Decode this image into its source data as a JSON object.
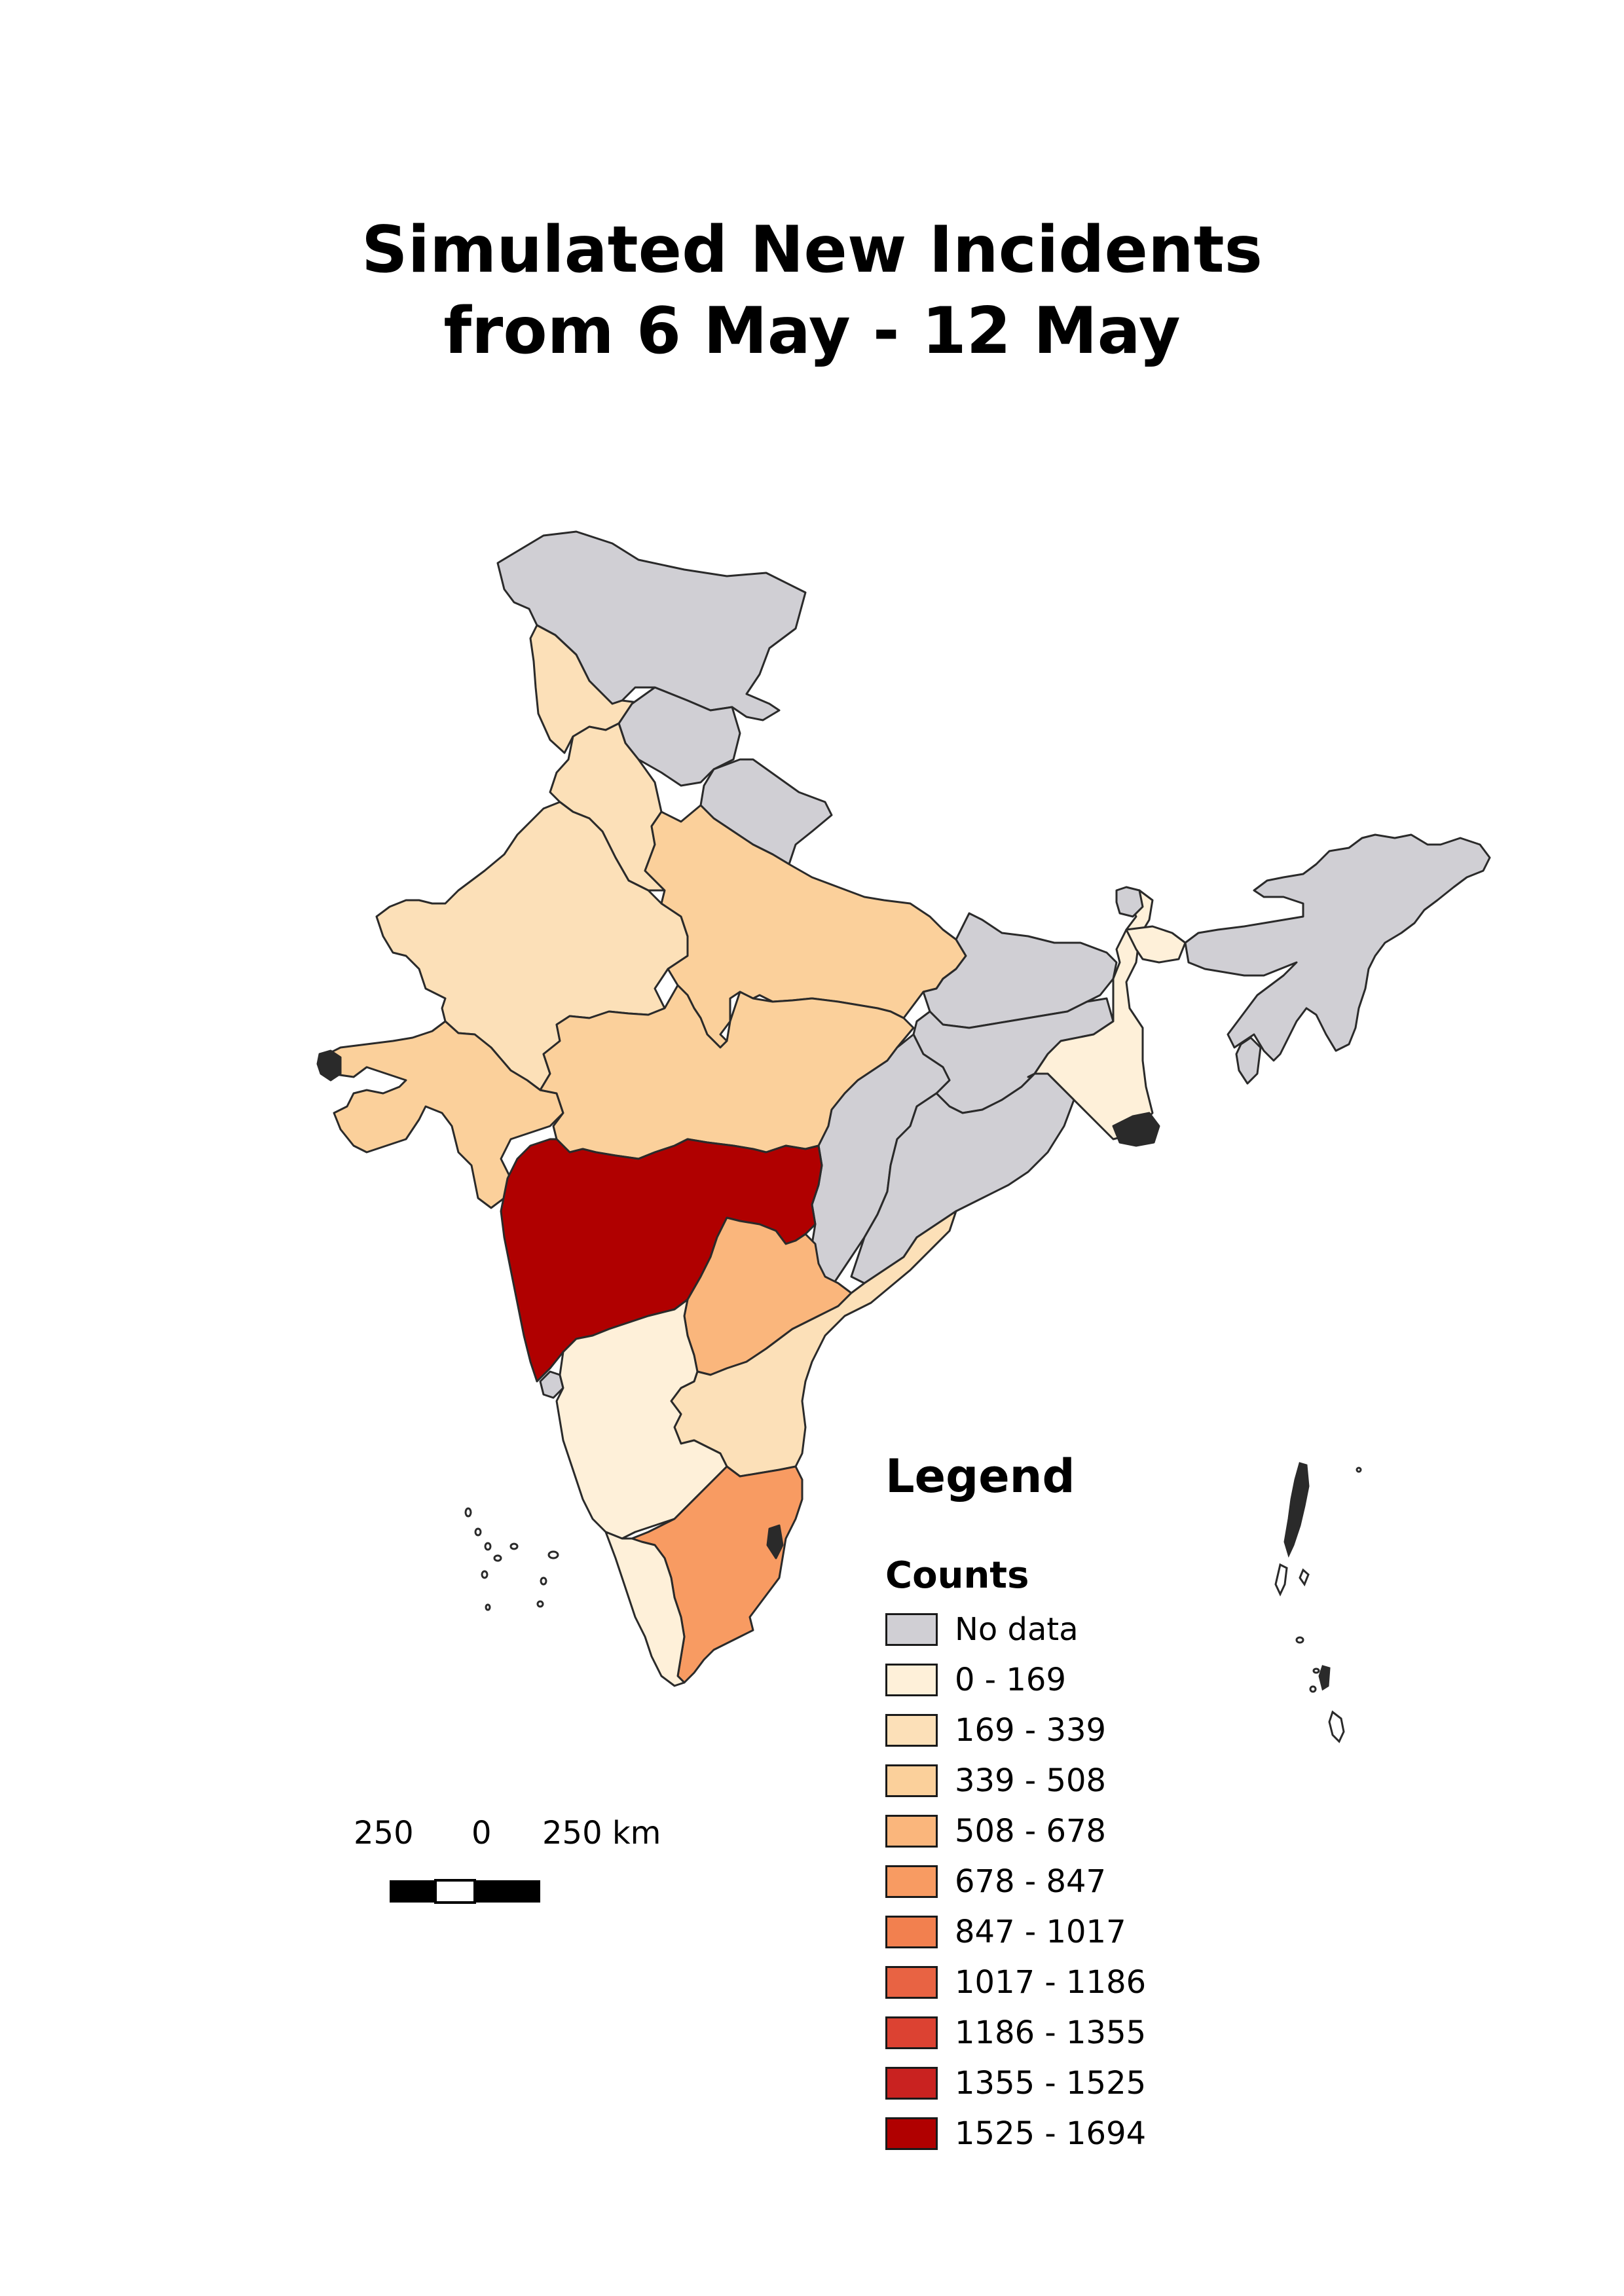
{
  "title": {
    "line1": "Simulated New Incidents",
    "line2": "from 6 May - 12 May"
  },
  "legend": {
    "title": "Legend",
    "subtitle": "Counts",
    "items": [
      {
        "label": "No data",
        "color": "#d0cfd4"
      },
      {
        "label": "0 - 169",
        "color": "#fef0d9"
      },
      {
        "label": "169 - 339",
        "color": "#fce0b8"
      },
      {
        "label": "339 - 508",
        "color": "#fbd09b"
      },
      {
        "label": "508 - 678",
        "color": "#fab67c"
      },
      {
        "label": "678 - 847",
        "color": "#f89b62"
      },
      {
        "label": "847 - 1017",
        "color": "#f2804f"
      },
      {
        "label": "1017 - 1186",
        "color": "#e86343"
      },
      {
        "label": "1186 - 1355",
        "color": "#dc4232"
      },
      {
        "label": "1355 - 1525",
        "color": "#c92220"
      },
      {
        "label": "1525 - 1694",
        "color": "#b00000"
      }
    ]
  },
  "scale_bar": {
    "left_label": "250",
    "mid_label": "0",
    "right_label": "250 km"
  }
}
